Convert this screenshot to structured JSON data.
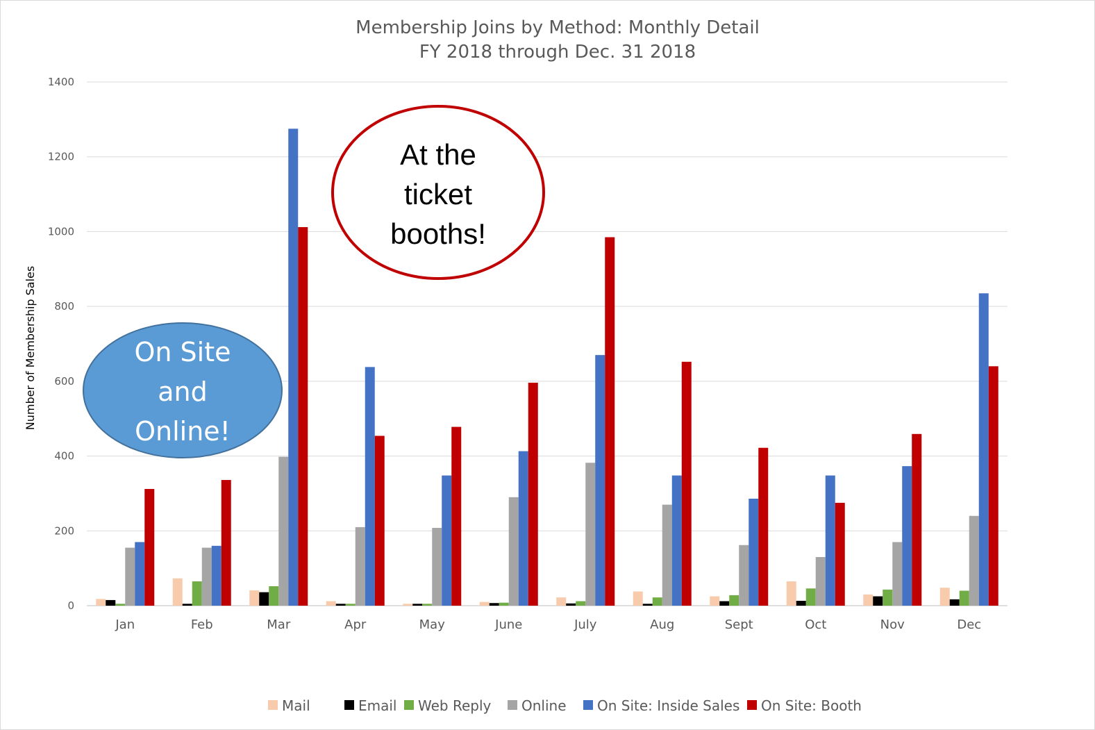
{
  "chart_data": {
    "type": "bar",
    "title": "Membership Joins by Method: Monthly Detail",
    "subtitle": "FY 2018 through Dec. 31 2018",
    "xlabel": "",
    "ylabel": "Number of Membership Sales",
    "ylim": [
      0,
      1400
    ],
    "yticks": [
      0,
      200,
      400,
      600,
      800,
      1000,
      1200,
      1400
    ],
    "grid": true,
    "legend_position": "bottom",
    "categories": [
      "Jan",
      "Feb",
      "Mar",
      "Apr",
      "May",
      "June",
      "July",
      "Aug",
      "Sept",
      "Oct",
      "Nov",
      "Dec"
    ],
    "series": [
      {
        "name": "Mail",
        "color": "#f8cbad",
        "values": [
          18,
          73,
          41,
          12,
          5,
          10,
          22,
          38,
          25,
          65,
          30,
          48
        ]
      },
      {
        "name": "Email",
        "color": "#000000",
        "values": [
          15,
          5,
          36,
          5,
          5,
          7,
          6,
          5,
          12,
          13,
          25,
          17
        ]
      },
      {
        "name": "Web Reply",
        "color": "#70ad47",
        "values": [
          5,
          65,
          52,
          5,
          5,
          8,
          12,
          22,
          28,
          46,
          43,
          40
        ]
      },
      {
        "name": "Online",
        "color": "#a5a5a5",
        "values": [
          155,
          155,
          398,
          210,
          208,
          290,
          382,
          270,
          162,
          130,
          170,
          240
        ]
      },
      {
        "name": "On Site: Inside Sales",
        "color": "#4472c4",
        "values": [
          170,
          160,
          1275,
          638,
          348,
          413,
          670,
          348,
          286,
          348,
          373,
          835
        ]
      },
      {
        "name": "On Site: Booth",
        "color": "#c00000",
        "values": [
          312,
          336,
          1012,
          454,
          478,
          596,
          985,
          652,
          422,
          275,
          459,
          640
        ]
      }
    ],
    "annotations": [
      {
        "name": "ticket-booths",
        "lines": [
          "At the",
          "ticket",
          "booths!"
        ],
        "fill": "#ffffff",
        "stroke": "#c00000"
      },
      {
        "name": "onsite-online",
        "lines": [
          "On Site",
          "and",
          "Online!"
        ],
        "fill": "#5b9bd5",
        "stroke": "#41719c"
      }
    ]
  }
}
